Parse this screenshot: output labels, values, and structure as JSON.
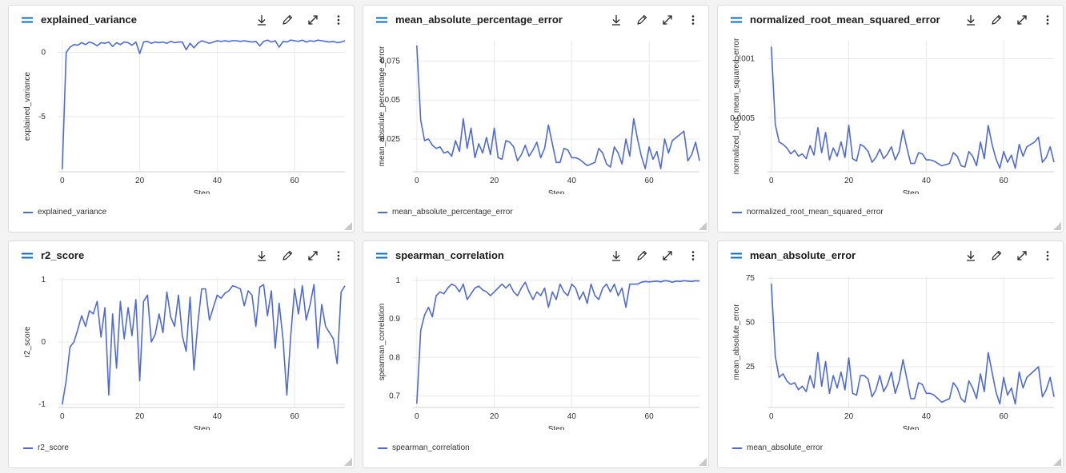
{
  "toolbar": {
    "download_icon": "download-icon",
    "edit_icon": "pencil-icon",
    "expand_icon": "expand-icon",
    "more_icon": "more-vertical-icon"
  },
  "colors": {
    "series": "#4f6bd3",
    "grid": "#e8e8e8",
    "accent": "#0f6cbd"
  },
  "chart_data": [
    {
      "type": "line",
      "title": "explained_variance",
      "xlabel": "Step",
      "ylabel": "explained_variance",
      "legend": "explained_variance",
      "legend_position": "bottom-left",
      "grid": true,
      "xlim": [
        -1,
        73
      ],
      "ylim": [
        -9.3,
        0.9
      ],
      "xticks": [
        0,
        20,
        40,
        60
      ],
      "yticks": [
        0,
        -5
      ],
      "series": [
        {
          "name": "explained_variance",
          "x": [
            0,
            1,
            2,
            3,
            4,
            5,
            6,
            7,
            8,
            9,
            10,
            11,
            12,
            13,
            14,
            15,
            16,
            17,
            18,
            19,
            20,
            21,
            22,
            23,
            24,
            25,
            26,
            27,
            28,
            29,
            30,
            31,
            32,
            33,
            34,
            35,
            36,
            37,
            38,
            39,
            40,
            41,
            42,
            43,
            44,
            45,
            46,
            47,
            48,
            49,
            50,
            51,
            52,
            53,
            54,
            55,
            56,
            57,
            58,
            59,
            60,
            61,
            62,
            63,
            64,
            65,
            66,
            67,
            68,
            69,
            70,
            71,
            72,
            73
          ],
          "values": [
            -9.1,
            0.0,
            0.4,
            0.6,
            0.55,
            0.75,
            0.6,
            0.8,
            0.7,
            0.5,
            0.75,
            0.7,
            0.8,
            0.45,
            0.75,
            0.6,
            0.8,
            0.75,
            0.55,
            0.8,
            -0.1,
            0.8,
            0.85,
            0.7,
            0.8,
            0.75,
            0.8,
            0.7,
            0.85,
            0.75,
            0.8,
            0.8,
            0.2,
            0.7,
            0.35,
            0.7,
            0.9,
            0.8,
            0.7,
            0.8,
            0.9,
            0.85,
            0.9,
            0.85,
            0.9,
            0.9,
            0.85,
            0.9,
            0.85,
            0.8,
            0.85,
            0.5,
            0.85,
            0.95,
            0.8,
            0.9,
            0.4,
            0.85,
            0.8,
            0.95,
            0.9,
            0.85,
            0.95,
            0.8,
            0.9,
            0.85,
            0.95,
            0.9,
            0.85,
            0.8,
            0.85,
            0.75,
            0.8,
            0.9
          ]
        }
      ]
    },
    {
      "type": "line",
      "title": "mean_absolute_percentage_error",
      "xlabel": "Step",
      "ylabel": "mean_absolute_percentage_error",
      "legend": "mean_absolute_percentage_error",
      "legend_position": "bottom-left",
      "grid": true,
      "xlim": [
        -1,
        73
      ],
      "ylim": [
        0.004,
        0.088
      ],
      "xticks": [
        0,
        20,
        40,
        60
      ],
      "yticks": [
        0.075,
        0.05,
        0.025
      ],
      "ytick_labels": [
        "0.075",
        "0.05",
        "0.025"
      ],
      "series": [
        {
          "name": "mean_absolute_percentage_error",
          "x": [
            0,
            1,
            2,
            3,
            4,
            5,
            6,
            7,
            8,
            9,
            10,
            11,
            12,
            13,
            14,
            15,
            16,
            17,
            18,
            19,
            20,
            21,
            22,
            23,
            24,
            25,
            26,
            27,
            28,
            29,
            30,
            31,
            32,
            33,
            34,
            35,
            36,
            37,
            38,
            39,
            40,
            41,
            42,
            43,
            44,
            45,
            46,
            47,
            48,
            49,
            50,
            51,
            52,
            53,
            54,
            55,
            56,
            57,
            58,
            59,
            60,
            61,
            62,
            63,
            64,
            65,
            66,
            67,
            68,
            69,
            70,
            71,
            72,
            73
          ],
          "values": [
            0.085,
            0.037,
            0.024,
            0.025,
            0.021,
            0.019,
            0.02,
            0.016,
            0.017,
            0.014,
            0.024,
            0.017,
            0.038,
            0.019,
            0.032,
            0.013,
            0.022,
            0.016,
            0.026,
            0.015,
            0.032,
            0.013,
            0.012,
            0.024,
            0.023,
            0.02,
            0.011,
            0.015,
            0.021,
            0.014,
            0.018,
            0.023,
            0.013,
            0.019,
            0.034,
            0.022,
            0.01,
            0.01,
            0.019,
            0.018,
            0.013,
            0.013,
            0.012,
            0.01,
            0.008,
            0.009,
            0.01,
            0.019,
            0.016,
            0.009,
            0.007,
            0.02,
            0.016,
            0.009,
            0.025,
            0.014,
            0.038,
            0.025,
            0.014,
            0.006,
            0.02,
            0.012,
            0.017,
            0.006,
            0.025,
            0.016,
            0.024,
            0.026,
            0.028,
            0.03,
            0.011,
            0.015,
            0.023,
            0.011
          ]
        }
      ]
    },
    {
      "type": "line",
      "title": "normalized_root_mean_squared_error",
      "xlabel": "Step",
      "ylabel": "normalized_root_mean_squared_error",
      "legend": "normalized_root_mean_squared_error",
      "legend_position": "bottom-left",
      "grid": true,
      "xlim": [
        -1,
        73
      ],
      "ylim": [
        5e-05,
        0.00115
      ],
      "xticks": [
        0,
        20,
        40,
        60
      ],
      "yticks": [
        0.001,
        0.0005
      ],
      "ytick_labels": [
        "0.001",
        "0.0005"
      ],
      "series": [
        {
          "name": "normalized_root_mean_squared_error",
          "x": [
            0,
            1,
            2,
            3,
            4,
            5,
            6,
            7,
            8,
            9,
            10,
            11,
            12,
            13,
            14,
            15,
            16,
            17,
            18,
            19,
            20,
            21,
            22,
            23,
            24,
            25,
            26,
            27,
            28,
            29,
            30,
            31,
            32,
            33,
            34,
            35,
            36,
            37,
            38,
            39,
            40,
            41,
            42,
            43,
            44,
            45,
            46,
            47,
            48,
            49,
            50,
            51,
            52,
            53,
            54,
            55,
            56,
            57,
            58,
            59,
            60,
            61,
            62,
            63,
            64,
            65,
            66,
            67,
            68,
            69,
            70,
            71,
            72,
            73
          ],
          "values": [
            0.0011,
            0.00045,
            0.0003,
            0.00028,
            0.00025,
            0.0002,
            0.00023,
            0.00018,
            0.0002,
            0.00016,
            0.00027,
            0.00019,
            0.00042,
            0.00021,
            0.00038,
            0.00015,
            0.00025,
            0.00018,
            0.0003,
            0.00017,
            0.00044,
            0.00016,
            0.00014,
            0.00028,
            0.00026,
            0.00022,
            0.00013,
            0.00017,
            0.00024,
            0.00016,
            0.0002,
            0.00026,
            0.00015,
            0.00022,
            0.0004,
            0.00025,
            0.00012,
            0.00012,
            0.00021,
            0.0002,
            0.00015,
            0.00015,
            0.00014,
            0.00012,
            0.0001,
            0.00011,
            0.00012,
            0.00021,
            0.00018,
            0.0001,
            9e-05,
            0.00022,
            0.00018,
            0.0001,
            0.0003,
            0.00016,
            0.00044,
            0.00028,
            0.00016,
            8e-05,
            0.00022,
            0.00013,
            0.00019,
            8e-05,
            0.00028,
            0.00018,
            0.00026,
            0.00028,
            0.0003,
            0.00034,
            0.00013,
            0.00017,
            0.00026,
            0.00013
          ]
        }
      ]
    },
    {
      "type": "line",
      "title": "r2_score",
      "xlabel": "Step",
      "ylabel": "r2_score",
      "legend": "r2_score",
      "legend_position": "bottom-left",
      "grid": true,
      "xlim": [
        -1,
        73
      ],
      "ylim": [
        -1.05,
        1.05
      ],
      "xticks": [
        0,
        20,
        40,
        60
      ],
      "yticks": [
        1,
        0,
        -1
      ],
      "series": [
        {
          "name": "r2_score",
          "x": [
            0,
            1,
            2,
            3,
            4,
            5,
            6,
            7,
            8,
            9,
            10,
            11,
            12,
            13,
            14,
            15,
            16,
            17,
            18,
            19,
            20,
            21,
            22,
            23,
            24,
            25,
            26,
            27,
            28,
            29,
            30,
            31,
            32,
            33,
            34,
            35,
            36,
            37,
            38,
            39,
            40,
            41,
            42,
            43,
            44,
            45,
            46,
            47,
            48,
            49,
            50,
            51,
            52,
            53,
            54,
            55,
            56,
            57,
            58,
            59,
            60,
            61,
            62,
            63,
            64,
            65,
            66,
            67,
            68,
            69,
            70,
            71,
            72,
            73
          ],
          "values": [
            -1.0,
            -0.62,
            -0.08,
            0.0,
            0.2,
            0.42,
            0.25,
            0.5,
            0.45,
            0.65,
            0.08,
            0.55,
            -0.85,
            0.45,
            -0.42,
            0.65,
            0.05,
            0.55,
            0.1,
            0.68,
            -0.62,
            0.65,
            0.75,
            0.0,
            0.12,
            0.45,
            0.15,
            0.8,
            0.4,
            0.25,
            0.75,
            0.1,
            -0.15,
            0.72,
            -0.45,
            0.3,
            0.85,
            0.85,
            0.35,
            0.55,
            0.75,
            0.7,
            0.78,
            0.82,
            0.9,
            0.88,
            0.85,
            0.58,
            0.82,
            0.75,
            0.25,
            0.88,
            0.92,
            0.42,
            0.82,
            -0.1,
            0.62,
            0.05,
            -0.85,
            0.1,
            0.85,
            0.45,
            0.9,
            0.35,
            0.6,
            0.92,
            -0.1,
            0.6,
            0.25,
            0.15,
            0.05,
            -0.35,
            0.8,
            0.9
          ]
        }
      ]
    },
    {
      "type": "line",
      "title": "spearman_correlation",
      "xlabel": "Step",
      "ylabel": "spearman_correlation",
      "legend": "spearman_correlation",
      "legend_position": "bottom-left",
      "grid": true,
      "xlim": [
        -1,
        73
      ],
      "ylim": [
        0.67,
        1.01
      ],
      "xticks": [
        0,
        20,
        40,
        60
      ],
      "yticks": [
        1,
        0.9,
        0.8,
        0.7
      ],
      "ytick_labels": [
        "1",
        "0.9",
        "0.8",
        "0.7"
      ],
      "series": [
        {
          "name": "spearman_correlation",
          "x": [
            0,
            1,
            2,
            3,
            4,
            5,
            6,
            7,
            8,
            9,
            10,
            11,
            12,
            13,
            14,
            15,
            16,
            17,
            18,
            19,
            20,
            21,
            22,
            23,
            24,
            25,
            26,
            27,
            28,
            29,
            30,
            31,
            32,
            33,
            34,
            35,
            36,
            37,
            38,
            39,
            40,
            41,
            42,
            43,
            44,
            45,
            46,
            47,
            48,
            49,
            50,
            51,
            52,
            53,
            54,
            55,
            56,
            57,
            58,
            59,
            60,
            61,
            62,
            63,
            64,
            65,
            66,
            67,
            68,
            69,
            70,
            71,
            72,
            73
          ],
          "values": [
            0.68,
            0.87,
            0.91,
            0.93,
            0.905,
            0.96,
            0.97,
            0.965,
            0.98,
            0.99,
            0.985,
            0.97,
            0.99,
            0.95,
            0.965,
            0.98,
            0.985,
            0.975,
            0.97,
            0.96,
            0.97,
            0.98,
            0.99,
            0.98,
            0.99,
            0.97,
            0.96,
            0.98,
            0.995,
            0.97,
            0.95,
            0.97,
            0.96,
            0.98,
            0.93,
            0.97,
            0.95,
            0.99,
            0.97,
            0.96,
            0.99,
            0.98,
            0.95,
            0.97,
            0.94,
            0.99,
            0.96,
            0.95,
            0.98,
            0.99,
            0.97,
            0.99,
            0.96,
            0.98,
            0.93,
            0.99,
            0.99,
            0.99,
            0.995,
            0.997,
            0.996,
            0.997,
            0.998,
            0.996,
            0.999,
            0.998,
            0.995,
            0.998,
            0.997,
            0.999,
            0.998,
            0.997,
            0.999,
            0.998
          ]
        }
      ]
    },
    {
      "type": "line",
      "title": "mean_absolute_error",
      "xlabel": "Step",
      "ylabel": "mean_absolute_error",
      "legend": "mean_absolute_error",
      "legend_position": "bottom-left",
      "grid": true,
      "xlim": [
        -1,
        73
      ],
      "ylim": [
        2,
        76
      ],
      "xticks": [
        0,
        20,
        40,
        60
      ],
      "yticks": [
        75,
        50,
        25
      ],
      "series": [
        {
          "name": "mean_absolute_error",
          "x": [
            0,
            1,
            2,
            3,
            4,
            5,
            6,
            7,
            8,
            9,
            10,
            11,
            12,
            13,
            14,
            15,
            16,
            17,
            18,
            19,
            20,
            21,
            22,
            23,
            24,
            25,
            26,
            27,
            28,
            29,
            30,
            31,
            32,
            33,
            34,
            35,
            36,
            37,
            38,
            39,
            40,
            41,
            42,
            43,
            44,
            45,
            46,
            47,
            48,
            49,
            50,
            51,
            52,
            53,
            54,
            55,
            56,
            57,
            58,
            59,
            60,
            61,
            62,
            63,
            64,
            65,
            66,
            67,
            68,
            69,
            70,
            71,
            72,
            73
          ],
          "values": [
            72,
            31,
            19,
            21,
            17,
            15,
            16,
            12,
            14,
            11,
            20,
            13,
            33,
            14,
            28,
            10,
            20,
            13,
            22,
            12,
            30,
            10,
            9,
            20,
            20,
            18,
            8,
            12,
            20,
            11,
            15,
            22,
            10,
            17,
            29,
            18,
            7,
            7,
            16,
            15,
            10,
            10,
            9,
            7,
            5,
            6,
            7,
            16,
            13,
            7,
            5,
            17,
            13,
            7,
            21,
            11,
            33,
            22,
            11,
            4,
            19,
            9,
            13,
            4,
            22,
            13,
            19,
            21,
            23,
            25,
            8,
            12,
            19,
            8
          ]
        }
      ]
    }
  ]
}
